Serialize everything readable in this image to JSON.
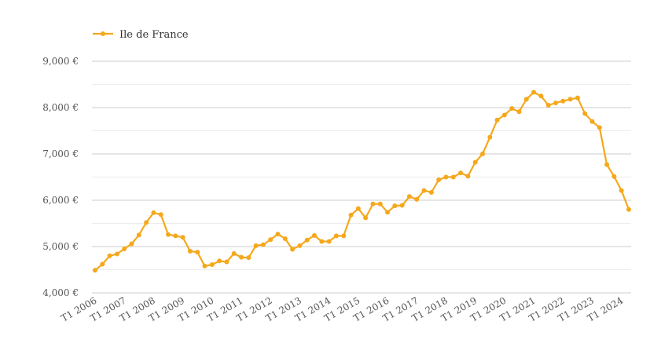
{
  "chart_data": {
    "type": "line",
    "title": "",
    "xlabel": "",
    "ylabel": "",
    "ylim": [
      4000,
      9000
    ],
    "y_ticks": [
      4000,
      5000,
      6000,
      7000,
      8000,
      9000
    ],
    "y_tick_labels": [
      "4,000 €",
      "5,000 €",
      "6,000 €",
      "7,000 €",
      "8,000 €",
      "9,000 €"
    ],
    "x_tick_labels": [
      "T1 2006",
      "T1 2007",
      "T1 2008",
      "T1 2009",
      "T1 2010",
      "T1 2011",
      "T1 2012",
      "T1 2013",
      "T1 2014",
      "T1 2015",
      "T1 2016",
      "T1 2017",
      "T1 2018",
      "T1 2019",
      "T1 2020",
      "T1 2021",
      "T1 2022",
      "T1 2023",
      "T1 2024"
    ],
    "grid": true,
    "legend": "top-left",
    "series": [
      {
        "name": "Ile de France",
        "color": "#f5a81c",
        "values": [
          4490,
          4620,
          4800,
          4840,
          4950,
          5060,
          5250,
          5520,
          5730,
          5690,
          5260,
          5230,
          5200,
          4900,
          4880,
          4580,
          4610,
          4690,
          4670,
          4850,
          4770,
          4760,
          5020,
          5040,
          5150,
          5270,
          5170,
          4940,
          5020,
          5140,
          5240,
          5110,
          5110,
          5230,
          5230,
          5680,
          5820,
          5620,
          5920,
          5920,
          5740,
          5880,
          5890,
          6080,
          6020,
          6210,
          6170,
          6440,
          6500,
          6500,
          6590,
          6520,
          6820,
          7000,
          7360,
          7730,
          7840,
          7980,
          7910,
          8180,
          8330,
          8250,
          8050,
          8100,
          8140,
          8180,
          8210,
          7870,
          7700,
          7570,
          6770,
          6510,
          6210,
          5800
        ]
      }
    ]
  }
}
